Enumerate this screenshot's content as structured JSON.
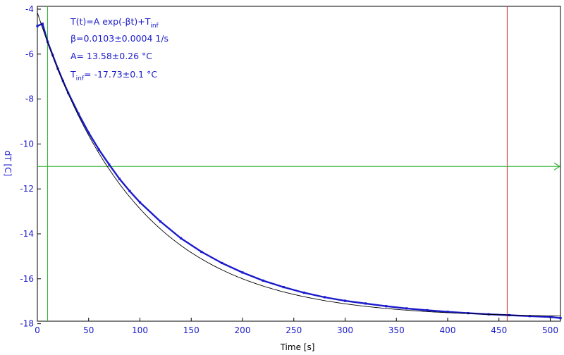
{
  "chart_data": {
    "type": "scatter",
    "xlabel": "Time [s]",
    "ylabel": "dT [C]",
    "xlim": [
      0,
      510
    ],
    "ylim": [
      -18,
      -4
    ],
    "x_ticks": [
      0,
      50,
      100,
      150,
      200,
      250,
      300,
      350,
      400,
      450,
      500
    ],
    "y_ticks": [
      -4,
      -6,
      -8,
      -10,
      -12,
      -14,
      -16,
      -18
    ],
    "grid": false,
    "fit_model": {
      "formula": {
        "text": "T(t)=A exp(-βt)+T",
        "sub": "inf"
      },
      "A": 13.58,
      "beta": 0.0103,
      "T_inf": -17.73
    },
    "annotations": {
      "formula": {
        "text": "T(t)=A exp(-βt)+T",
        "sub": "inf"
      },
      "beta": "β=0.0103±0.0004 1/s",
      "A": "A= 13.58±0.26 °C",
      "tinf_prefix": "T",
      "tinf_sub": "inf",
      "tinf_rest": "= -17.73±0.1 °C"
    },
    "series": [
      {
        "points": [
          [
            0,
            -4.75
          ],
          [
            5,
            -4.65
          ],
          [
            10,
            -5.45
          ],
          [
            15,
            -6.05
          ],
          [
            20,
            -6.65
          ],
          [
            25,
            -7.2
          ],
          [
            30,
            -7.72
          ],
          [
            40,
            -8.65
          ],
          [
            50,
            -9.5
          ],
          [
            60,
            -10.25
          ],
          [
            70,
            -10.92
          ],
          [
            80,
            -11.55
          ],
          [
            90,
            -12.1
          ],
          [
            100,
            -12.6
          ],
          [
            120,
            -13.45
          ],
          [
            140,
            -14.2
          ],
          [
            160,
            -14.8
          ],
          [
            180,
            -15.3
          ],
          [
            200,
            -15.72
          ],
          [
            220,
            -16.08
          ],
          [
            240,
            -16.37
          ],
          [
            260,
            -16.62
          ],
          [
            280,
            -16.82
          ],
          [
            300,
            -16.98
          ],
          [
            320,
            -17.1
          ],
          [
            340,
            -17.22
          ],
          [
            360,
            -17.32
          ],
          [
            380,
            -17.4
          ],
          [
            400,
            -17.47
          ],
          [
            420,
            -17.53
          ],
          [
            440,
            -17.58
          ],
          [
            460,
            -17.62
          ],
          [
            480,
            -17.66
          ],
          [
            500,
            -17.7
          ],
          [
            510,
            -17.75
          ]
        ]
      }
    ],
    "markers": {
      "green_vline_x": 10,
      "red_vline_x": 458,
      "green_hline_y": -11
    },
    "colors": {
      "data": "#1a1acc",
      "fit": "#000000",
      "green_line": "#2db02d",
      "red_line": "#c8282d",
      "axis_text": "#1a1acc",
      "axis_frame": "#000000"
    }
  }
}
